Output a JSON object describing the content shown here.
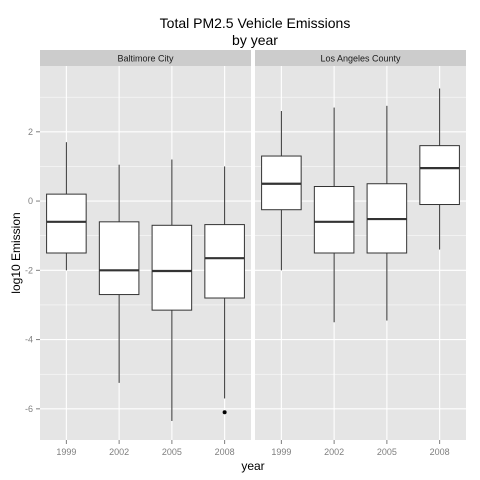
{
  "chart_data": {
    "type": "boxplot",
    "title": "Total PM2.5 Vehicle Emissions",
    "subtitle": "by year",
    "xlabel": "year",
    "ylabel": "log10 Emission",
    "categories": [
      "1999",
      "2002",
      "2005",
      "2008"
    ],
    "yticks": [
      -6,
      -4,
      -2,
      0,
      2
    ],
    "ylim": [
      -6.9,
      3.9
    ],
    "grid": true,
    "colors": {
      "panel": "#e5e5e5",
      "strip": "#cccccc",
      "grid": "#ffffff",
      "box_fill": "#ffffff",
      "box_line": "#333333"
    },
    "panels": [
      {
        "name": "Baltimore City",
        "boxes": [
          {
            "x": "1999",
            "min": -2.0,
            "q1": -1.5,
            "median": -0.6,
            "q3": 0.2,
            "max": 1.7,
            "outliers": []
          },
          {
            "x": "2002",
            "min": -5.25,
            "q1": -2.7,
            "median": -2.0,
            "q3": -0.6,
            "max": 1.05,
            "outliers": []
          },
          {
            "x": "2005",
            "min": -6.35,
            "q1": -3.15,
            "median": -2.02,
            "q3": -0.7,
            "max": 1.2,
            "outliers": []
          },
          {
            "x": "2008",
            "min": -5.7,
            "q1": -2.8,
            "median": -1.65,
            "q3": -0.68,
            "max": 1.0,
            "outliers": [
              -6.1
            ]
          }
        ]
      },
      {
        "name": "Los Angeles County",
        "boxes": [
          {
            "x": "1999",
            "min": -2.0,
            "q1": -0.25,
            "median": 0.5,
            "q3": 1.3,
            "max": 2.6,
            "outliers": []
          },
          {
            "x": "2002",
            "min": -3.5,
            "q1": -1.5,
            "median": -0.6,
            "q3": 0.42,
            "max": 2.7,
            "outliers": []
          },
          {
            "x": "2005",
            "min": -3.45,
            "q1": -1.5,
            "median": -0.52,
            "q3": 0.5,
            "max": 2.75,
            "outliers": []
          },
          {
            "x": "2008",
            "min": -1.4,
            "q1": -0.1,
            "median": 0.95,
            "q3": 1.6,
            "max": 3.25,
            "outliers": []
          }
        ]
      }
    ]
  }
}
